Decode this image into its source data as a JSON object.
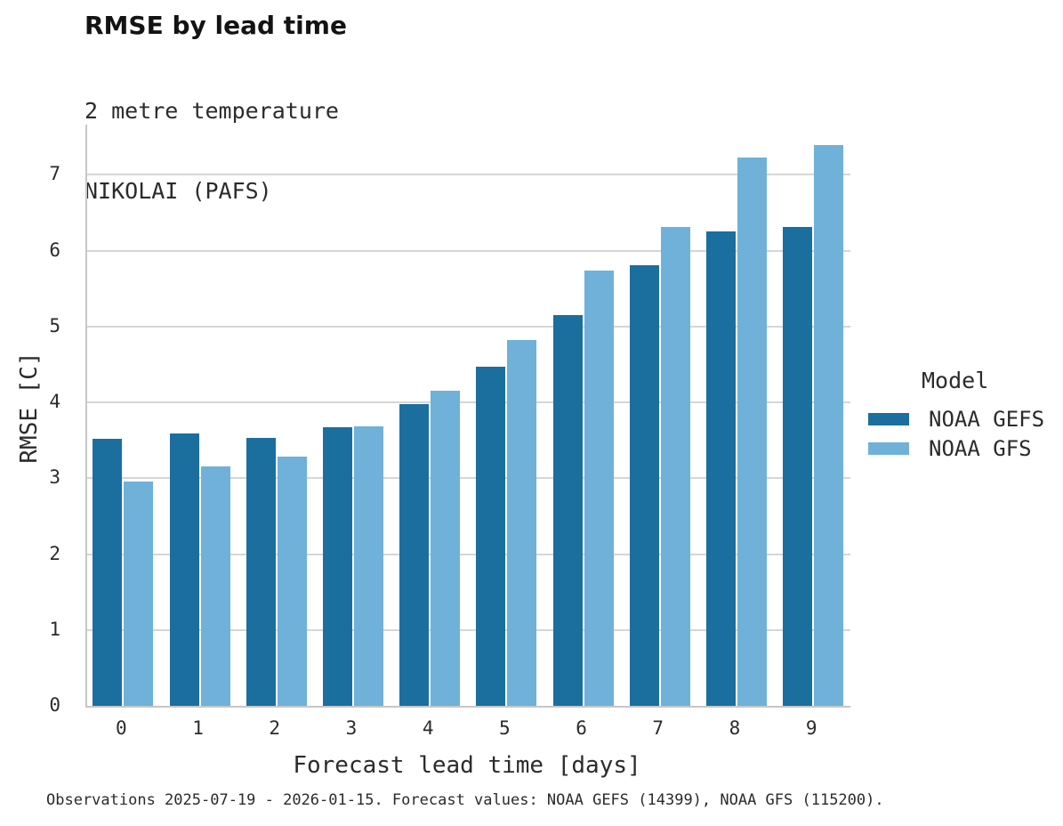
{
  "header": {
    "title": "RMSE by lead time",
    "subtitle_line1": "2 metre temperature",
    "subtitle_line2": "NIKOLAI (PAFS)"
  },
  "chart_data": {
    "type": "bar",
    "title": "RMSE by lead time",
    "subtitle": "2 metre temperature — NIKOLAI (PAFS)",
    "categories": [
      "0",
      "1",
      "2",
      "3",
      "4",
      "5",
      "6",
      "7",
      "8",
      "9"
    ],
    "series": [
      {
        "name": "NOAA GEFS",
        "color": "#1A6F9E",
        "values": [
          3.52,
          3.59,
          3.53,
          3.67,
          3.98,
          4.47,
          5.15,
          5.81,
          6.25,
          6.31
        ]
      },
      {
        "name": "NOAA GFS",
        "color": "#6FB1D8",
        "values": [
          2.96,
          3.15,
          3.29,
          3.68,
          4.15,
          4.82,
          5.74,
          6.31,
          7.23,
          7.39
        ]
      }
    ],
    "xlabel": "Forecast lead time [days]",
    "ylabel": "RMSE [C]",
    "ylim": [
      0,
      7.66
    ],
    "yticks": [
      0,
      1,
      2,
      3,
      4,
      5,
      6,
      7
    ],
    "grid": "horizontal",
    "grid_color": "#d6d6d6",
    "background": "#ffffff",
    "legend": {
      "title": "Model",
      "position": "right"
    }
  },
  "footer": {
    "note": "Observations 2025-07-19 - 2026-01-15. Forecast values: NOAA GEFS (14399), NOAA GFS (115200)."
  }
}
